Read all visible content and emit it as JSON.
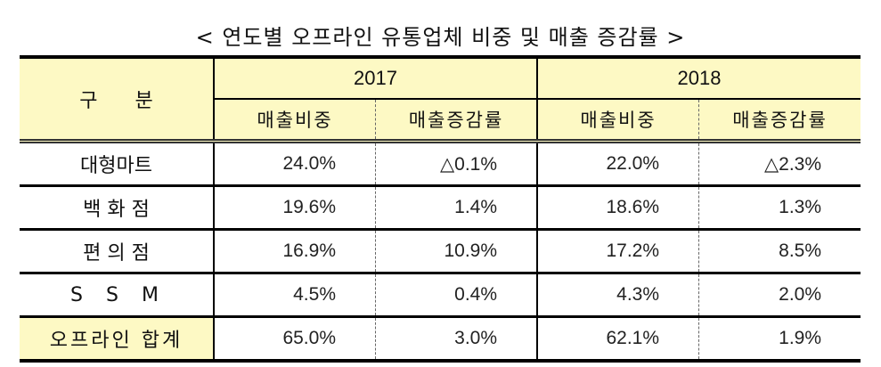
{
  "title": "< 연도별 오프라인 유통업체 비중 및 매출 증감률 >",
  "table": {
    "category_header": "구분",
    "years": [
      "2017",
      "2018"
    ],
    "sub_headers": [
      "매출비중",
      "매출증감률",
      "매출비중",
      "매출증감률"
    ],
    "rows": [
      {
        "label": "대형마트",
        "values": [
          "24.0%",
          "△0.1%",
          "22.0%",
          "△2.3%"
        ]
      },
      {
        "label": "백 화 점",
        "values": [
          "19.6%",
          "1.4%",
          "18.6%",
          "1.3%"
        ]
      },
      {
        "label": "편 의 점",
        "values": [
          "16.9%",
          "10.9%",
          "17.2%",
          "8.5%"
        ]
      },
      {
        "label": "S  S  M",
        "values": [
          "4.5%",
          "0.4%",
          "4.3%",
          "2.0%"
        ]
      },
      {
        "label": "오프라인 합계",
        "values": [
          "65.0%",
          "3.0%",
          "62.1%",
          "1.9%"
        ]
      }
    ]
  },
  "colors": {
    "header_bg": "#fdf9c4",
    "border": "#000000"
  }
}
